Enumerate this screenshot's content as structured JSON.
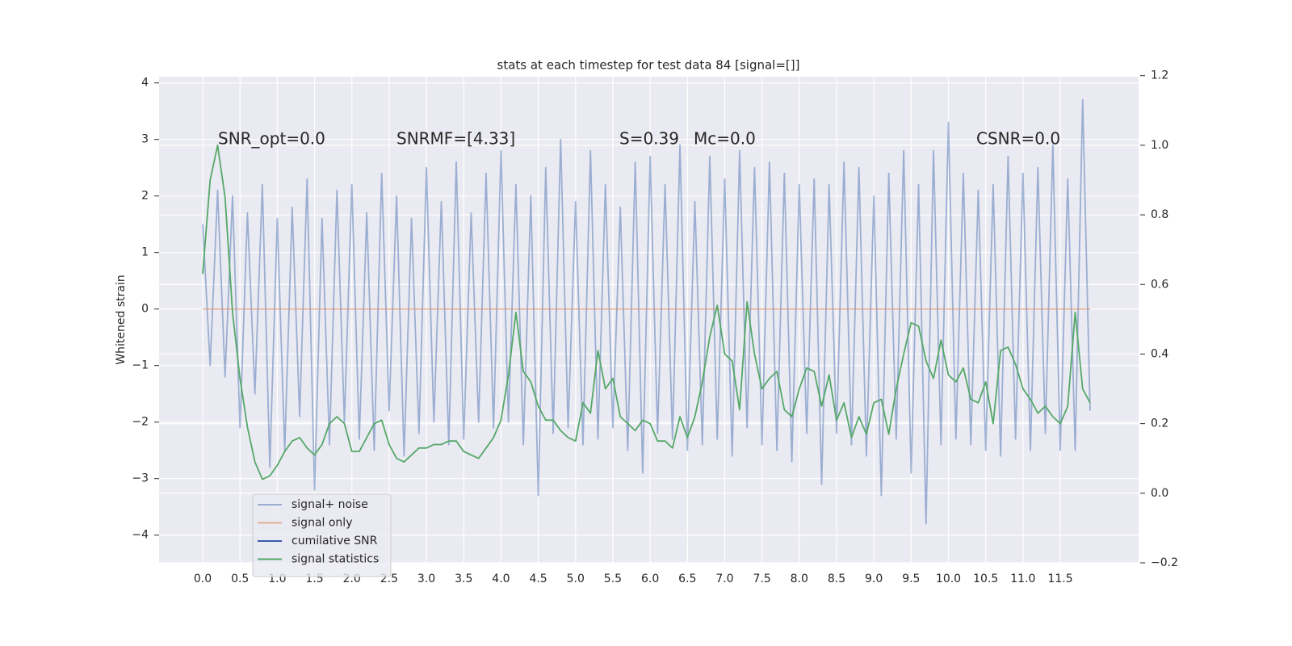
{
  "chart_data": {
    "type": "line",
    "title": "stats at each timestep for test data 84 [signal=[]]",
    "y_label": "Whitened strain",
    "annotations": [
      "SNR_opt=0.0",
      "SNRMF=[4.33]",
      "S=0.39",
      "Mc=0.0",
      "CSNR=0.0"
    ],
    "x": [
      0.0,
      0.1,
      0.2,
      0.3,
      0.4,
      0.5,
      0.6,
      0.7,
      0.8,
      0.9,
      1.0,
      1.1,
      1.2,
      1.3,
      1.4,
      1.5,
      1.6,
      1.7,
      1.8,
      1.9,
      2.0,
      2.1,
      2.2,
      2.3,
      2.4,
      2.5,
      2.6,
      2.7,
      2.8,
      2.9,
      3.0,
      3.1,
      3.2,
      3.3,
      3.4,
      3.5,
      3.6,
      3.7,
      3.8,
      3.9,
      4.0,
      4.1,
      4.2,
      4.3,
      4.4,
      4.5,
      4.6,
      4.7,
      4.8,
      4.9,
      5.0,
      5.1,
      5.2,
      5.3,
      5.4,
      5.5,
      5.6,
      5.7,
      5.8,
      5.9,
      6.0,
      6.1,
      6.2,
      6.3,
      6.4,
      6.5,
      6.6,
      6.7,
      6.8,
      6.9,
      7.0,
      7.1,
      7.2,
      7.3,
      7.4,
      7.5,
      7.6,
      7.7,
      7.8,
      7.9,
      8.0,
      8.1,
      8.2,
      8.3,
      8.4,
      8.5,
      8.6,
      8.7,
      8.8,
      8.9,
      9.0,
      9.1,
      9.2,
      9.3,
      9.4,
      9.5,
      9.6,
      9.7,
      9.8,
      9.9,
      10.0,
      10.1,
      10.2,
      10.3,
      10.4,
      10.5,
      10.6,
      10.7,
      10.8,
      10.9,
      11.0,
      11.1,
      11.2,
      11.3,
      11.4,
      11.5,
      11.6,
      11.7,
      11.8,
      11.9
    ],
    "series": [
      {
        "name": "signal+ noise",
        "color": "#4c72b0",
        "values": [
          1.5,
          -1.0,
          2.1,
          -1.2,
          2.0,
          -2.1,
          1.7,
          -1.5,
          2.2,
          -2.8,
          1.6,
          -2.5,
          1.8,
          -1.9,
          2.3,
          -3.2,
          1.6,
          -2.4,
          2.1,
          -2.0,
          2.2,
          -2.3,
          1.7,
          -2.5,
          2.4,
          -1.8,
          2.0,
          -2.6,
          1.6,
          -2.2,
          2.5,
          -2.0,
          1.9,
          -2.4,
          2.6,
          -2.3,
          1.7,
          -2.0,
          2.4,
          -2.1,
          2.8,
          -2.0,
          2.2,
          -2.4,
          2.0,
          -3.3,
          2.5,
          -2.2,
          3.0,
          -2.1,
          1.9,
          -2.4,
          2.8,
          -2.3,
          2.2,
          -2.1,
          1.8,
          -2.5,
          2.6,
          -2.9,
          2.7,
          -2.2,
          2.2,
          -2.3,
          2.9,
          -2.5,
          1.9,
          -2.4,
          2.7,
          -2.3,
          2.3,
          -2.6,
          2.8,
          -2.1,
          2.5,
          -2.4,
          2.6,
          -2.5,
          2.4,
          -2.7,
          2.2,
          -2.2,
          2.3,
          -3.1,
          2.2,
          -2.2,
          2.6,
          -2.4,
          2.5,
          -2.6,
          2.0,
          -3.3,
          2.4,
          -2.3,
          2.8,
          -2.9,
          2.2,
          -3.8,
          2.8,
          -2.4,
          3.3,
          -2.3,
          2.4,
          -2.4,
          2.1,
          -2.5,
          2.2,
          -2.6,
          2.7,
          -2.3,
          2.4,
          -2.5,
          2.5,
          -2.2,
          2.9,
          -2.5,
          2.3,
          -2.5,
          3.7,
          -1.8
        ]
      },
      {
        "name": "signal only",
        "color": "#dd8452",
        "values": [
          0,
          0,
          0,
          0,
          0,
          0,
          0,
          0,
          0,
          0,
          0,
          0,
          0,
          0,
          0,
          0,
          0,
          0,
          0,
          0,
          0,
          0,
          0,
          0,
          0,
          0,
          0,
          0,
          0,
          0,
          0,
          0,
          0,
          0,
          0,
          0,
          0,
          0,
          0,
          0,
          0,
          0,
          0,
          0,
          0,
          0,
          0,
          0,
          0,
          0,
          0,
          0,
          0,
          0,
          0,
          0,
          0,
          0,
          0,
          0,
          0,
          0,
          0,
          0,
          0,
          0,
          0,
          0,
          0,
          0,
          0,
          0,
          0,
          0,
          0,
          0,
          0,
          0,
          0,
          0,
          0,
          0,
          0,
          0,
          0,
          0,
          0,
          0,
          0,
          0,
          0,
          0,
          0,
          0,
          0,
          0,
          0,
          0,
          0,
          0,
          0,
          0,
          0,
          0,
          0,
          0,
          0,
          0,
          0,
          0,
          0,
          0,
          0,
          0,
          0,
          0,
          0,
          0,
          0,
          0
        ]
      },
      {
        "name": "cumilative SNR",
        "color": "#3a5da8",
        "values": [
          null,
          null,
          null,
          null,
          null,
          null,
          null,
          null,
          null,
          null,
          null,
          null,
          null,
          null,
          null,
          null,
          null,
          null,
          null,
          null,
          null,
          null,
          null,
          null,
          null,
          null,
          null,
          null,
          null,
          null,
          null,
          null,
          null,
          null,
          null,
          null,
          null,
          null,
          null,
          null,
          null,
          null,
          null,
          null,
          null,
          null,
          null,
          null,
          null,
          null,
          null,
          null,
          null,
          null,
          null,
          null,
          null,
          null,
          null,
          null,
          null,
          null,
          null,
          null,
          null,
          null,
          null,
          null,
          null,
          null,
          null,
          null,
          null,
          null,
          null,
          null,
          null,
          null,
          null,
          null,
          null,
          null,
          null,
          null,
          null,
          null,
          null,
          null,
          null,
          null,
          null,
          null,
          null,
          null,
          null,
          null,
          null,
          null,
          null,
          null,
          null,
          null,
          null,
          null,
          null,
          null,
          null,
          null,
          null,
          null,
          null,
          null,
          null,
          null,
          null,
          null,
          null,
          null,
          null,
          null
        ]
      },
      {
        "name": "signal statistics",
        "color": "#55a868",
        "axis": "y2",
        "values": [
          0.63,
          0.9,
          1.0,
          0.85,
          0.52,
          0.33,
          0.19,
          0.09,
          0.04,
          0.05,
          0.08,
          0.12,
          0.15,
          0.16,
          0.13,
          0.11,
          0.14,
          0.2,
          0.22,
          0.2,
          0.12,
          0.12,
          0.16,
          0.2,
          0.21,
          0.14,
          0.1,
          0.09,
          0.11,
          0.13,
          0.13,
          0.14,
          0.14,
          0.15,
          0.15,
          0.12,
          0.11,
          0.1,
          0.13,
          0.16,
          0.21,
          0.34,
          0.52,
          0.35,
          0.32,
          0.25,
          0.21,
          0.21,
          0.18,
          0.16,
          0.15,
          0.26,
          0.23,
          0.41,
          0.3,
          0.33,
          0.22,
          0.2,
          0.18,
          0.21,
          0.2,
          0.15,
          0.15,
          0.13,
          0.22,
          0.16,
          0.22,
          0.32,
          0.45,
          0.54,
          0.4,
          0.38,
          0.24,
          0.55,
          0.4,
          0.3,
          0.33,
          0.35,
          0.24,
          0.22,
          0.3,
          0.36,
          0.35,
          0.25,
          0.34,
          0.21,
          0.26,
          0.16,
          0.22,
          0.17,
          0.26,
          0.27,
          0.17,
          0.3,
          0.4,
          0.49,
          0.48,
          0.38,
          0.33,
          0.44,
          0.34,
          0.32,
          0.36,
          0.27,
          0.26,
          0.32,
          0.2,
          0.41,
          0.42,
          0.37,
          0.3,
          0.27,
          0.23,
          0.25,
          0.22,
          0.2,
          0.25,
          0.52,
          0.3,
          0.26
        ]
      }
    ],
    "xlim": [
      -0.585,
      12.55
    ],
    "xticks": [
      {
        "value": 0,
        "label": "0.0"
      },
      0.5,
      {
        "value": 1,
        "label": "1.0"
      },
      1.5,
      {
        "value": 2,
        "label": "2.0"
      },
      2.5,
      {
        "value": 3,
        "label": "3.0"
      },
      3.5,
      {
        "value": 4,
        "label": "4.0"
      },
      4.5,
      {
        "value": 5,
        "label": "5.0"
      },
      5.5,
      {
        "value": 6,
        "label": "6.0"
      },
      6.5,
      {
        "value": 7,
        "label": "7.0"
      },
      7.5,
      {
        "value": 8,
        "label": "8.0"
      },
      8.5,
      {
        "value": 9,
        "label": "9.0"
      },
      9.5,
      {
        "value": 10,
        "label": "10.0"
      },
      10.5,
      {
        "value": 11,
        "label": "11.0"
      },
      11.5
    ],
    "ylim": [
      -4.49,
      4.11
    ],
    "yticks": [
      {
        "value": -4,
        "label": "−4"
      },
      {
        "value": -3,
        "label": "−3"
      },
      {
        "value": -2,
        "label": "−2"
      },
      {
        "value": -1,
        "label": "−1"
      },
      0,
      1,
      2,
      3,
      4
    ],
    "y2lim": [
      -0.2,
      1.197
    ],
    "y2ticks": [
      {
        "value": -0.2,
        "label": "−0.2"
      },
      {
        "value": 0,
        "label": "0.0"
      },
      0.2,
      0.4,
      0.6,
      0.8,
      {
        "value": 1,
        "label": "1.0"
      },
      1.2
    ],
    "grid": true,
    "legend": "lower left"
  }
}
